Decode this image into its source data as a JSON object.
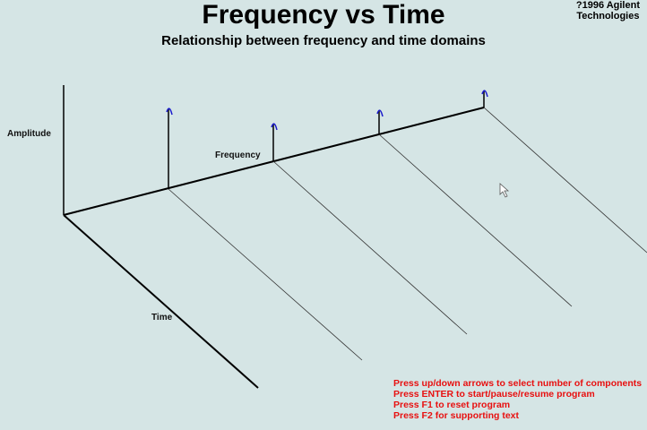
{
  "header": {
    "title": "Frequency vs Time",
    "subtitle": "Relationship between frequency and time domains",
    "copyright_line1": "?1996 Agilent",
    "copyright_line2": "Technologies"
  },
  "axes": {
    "amplitude": "Amplitude",
    "frequency": "Frequency",
    "time": "Time"
  },
  "help": [
    "Press up/down arrows to select number of components",
    "Press ENTER to start/pause/resume program",
    "Press F1 to reset program",
    "Press F2 for supporting text"
  ],
  "colors": {
    "background": "#d5e5e5",
    "help_text": "#e81010",
    "spike_tip": "#1a1acc"
  }
}
